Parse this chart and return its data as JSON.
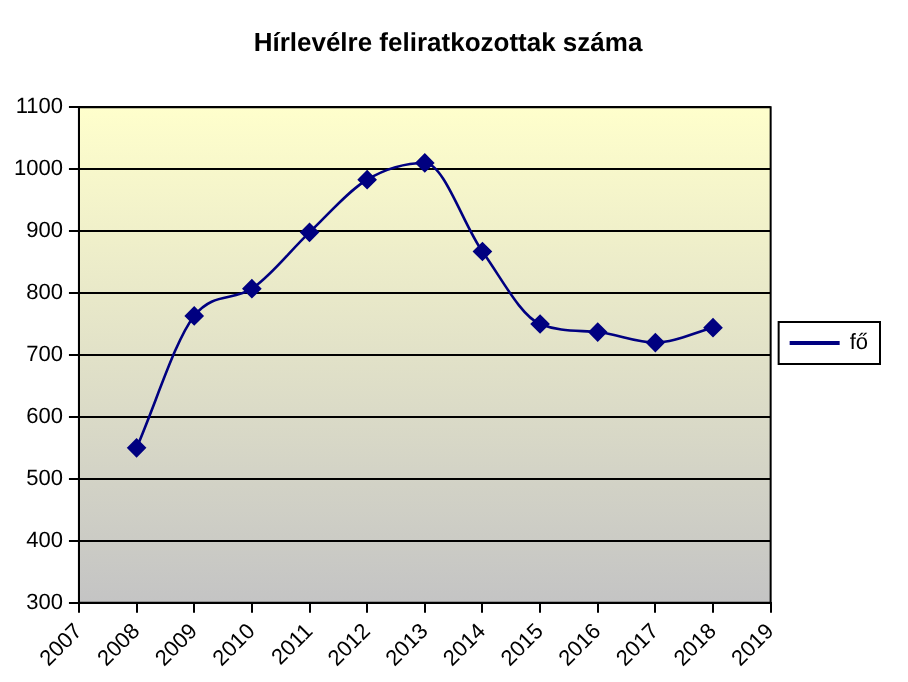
{
  "chart_data": {
    "type": "line",
    "title": "Hírlevélre feliratkozottak száma",
    "x": [
      2008,
      2009,
      2010,
      2011,
      2012,
      2013,
      2014,
      2015,
      2016,
      2017,
      2018
    ],
    "series": [
      {
        "name": "fő",
        "color": "#000080",
        "values": [
          550,
          763,
          807,
          898,
          983,
          1010,
          867,
          750,
          737,
          720,
          744
        ]
      }
    ],
    "xlim": [
      2007,
      2019
    ],
    "xticks": [
      2007,
      2008,
      2009,
      2010,
      2011,
      2012,
      2013,
      2014,
      2015,
      2016,
      2017,
      2018,
      2019
    ],
    "ylim": [
      300,
      1100
    ],
    "yticks": [
      300,
      400,
      500,
      600,
      700,
      800,
      900,
      1000,
      1100
    ],
    "grid": "y",
    "legend": "right",
    "marker": "diamond",
    "line_style": "solid"
  }
}
